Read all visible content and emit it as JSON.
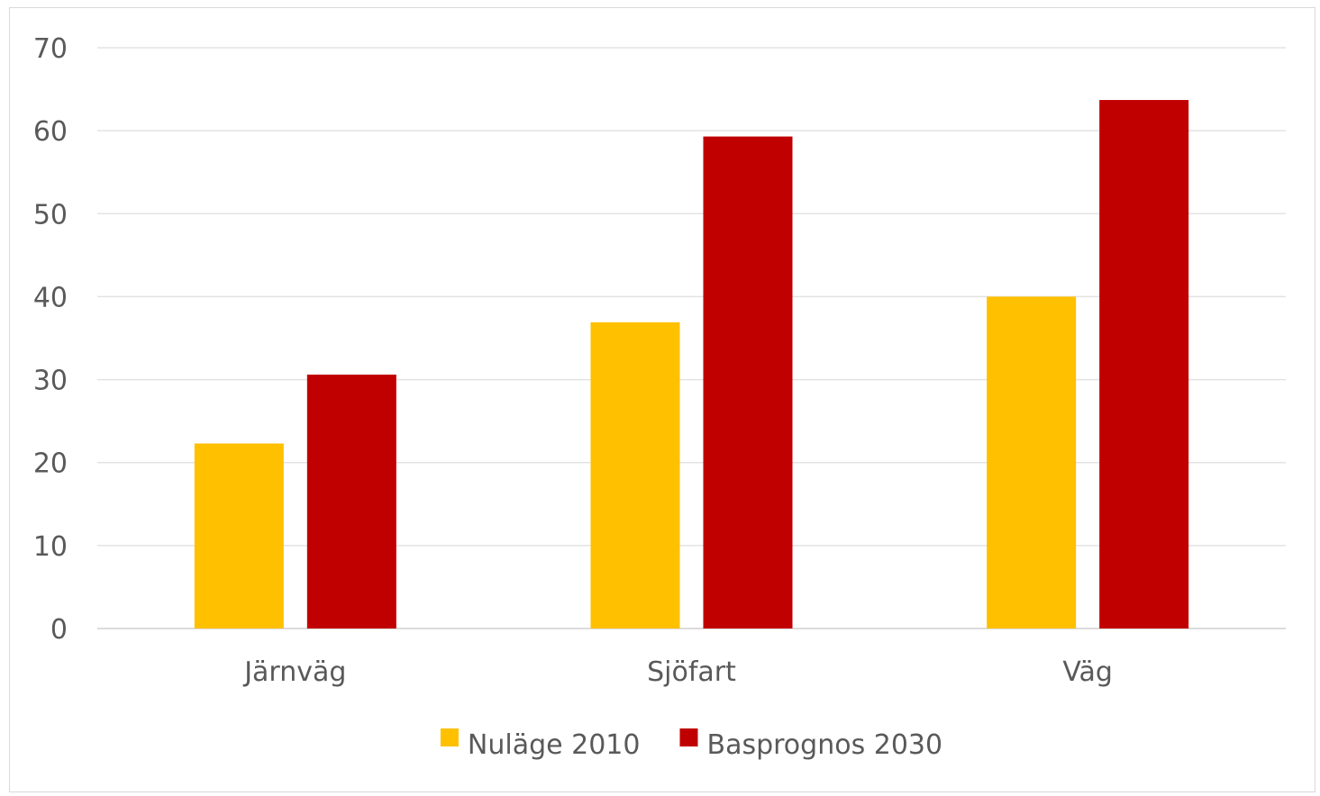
{
  "chart_data": {
    "type": "bar",
    "title": "",
    "xlabel": "",
    "ylabel": "",
    "categories": [
      "Järnväg",
      "Sjöfart",
      "Väg"
    ],
    "series": [
      {
        "name": "Nuläge 2010",
        "color": "#FFC000",
        "values": [
          22.3,
          36.9,
          40.0
        ]
      },
      {
        "name": "Basprognos 2030",
        "color": "#C00000",
        "values": [
          30.6,
          59.3,
          63.7
        ]
      }
    ],
    "ylim": [
      0,
      70
    ],
    "yticks": [
      0,
      10,
      20,
      30,
      40,
      50,
      60,
      70
    ],
    "grid": true,
    "legend": "bottom-center"
  }
}
